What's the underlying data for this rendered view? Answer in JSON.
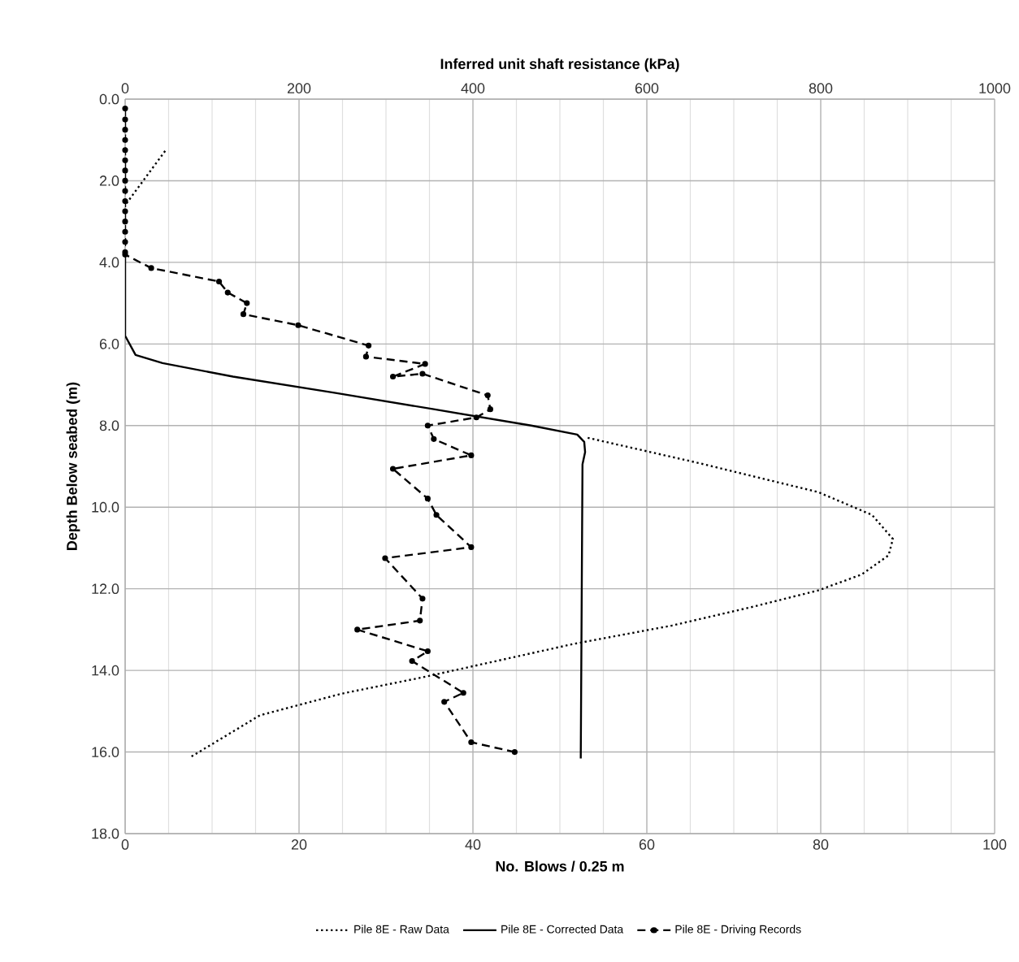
{
  "chart_data": {
    "type": "line",
    "xlabel": "No. Blows / 0.25 m",
    "x2label": "Inferred unit shaft resistance (kPa)",
    "ylabel": "Depth Below seabed (m)",
    "xlim": [
      0,
      100
    ],
    "xticks": [
      0,
      20,
      40,
      60,
      80,
      100
    ],
    "x2lim": [
      0,
      1000
    ],
    "x2ticks": [
      0,
      200,
      400,
      600,
      800,
      1000
    ],
    "ylim": [
      18,
      0
    ],
    "yticks": [
      {
        "value": 0,
        "label": "0.0"
      },
      {
        "value": 2,
        "label": "2.0"
      },
      {
        "value": 4,
        "label": "4.0"
      },
      {
        "value": 6,
        "label": "6.0"
      },
      {
        "value": 8,
        "label": "8.0"
      },
      {
        "value": 10,
        "label": "10.0"
      },
      {
        "value": 12,
        "label": "12.0"
      },
      {
        "value": 14,
        "label": "14.0"
      },
      {
        "value": 16,
        "label": "16.0"
      },
      {
        "value": 18,
        "label": "18.0"
      }
    ],
    "grid": true,
    "legend": "bottom",
    "series": [
      {
        "name": "Pile 8E - Raw Data",
        "color": "#000000",
        "axis": "x2",
        "line_style": "dotted",
        "marker": "none",
        "x": [
          46,
          0,
          null,
          532,
          660,
          797,
          859,
          883,
          878,
          847,
          797,
          722,
          629,
          516,
          342,
          249,
          155,
          74
        ],
        "values": [
          1.27,
          2.6,
          null,
          8.3,
          8.92,
          9.63,
          10.19,
          10.78,
          11.18,
          11.65,
          12.04,
          12.44,
          12.9,
          13.35,
          14.17,
          14.57,
          15.1,
          16.14
        ]
      },
      {
        "name": "Pile 8E - Corrected Data",
        "color": "#000000",
        "axis": "x2",
        "line_style": "solid",
        "marker": "none",
        "x": [
          0,
          0,
          12,
          43,
          124,
          242,
          355,
          467,
          520,
          528,
          529,
          526,
          524
        ],
        "values": [
          3.8,
          5.8,
          6.27,
          6.47,
          6.8,
          7.2,
          7.6,
          8.0,
          8.22,
          8.4,
          8.65,
          8.95,
          16.16
        ]
      },
      {
        "name": "Pile 8E - Driving Records",
        "color": "#000000",
        "line_style": "dashed",
        "marker": "circle",
        "x": [
          0,
          0,
          0,
          0,
          0,
          0,
          0,
          0,
          0,
          0,
          0,
          0,
          0,
          0,
          0,
          0,
          3.0,
          10.8,
          11.8,
          14.0,
          13.6,
          19.9,
          28.0,
          27.7,
          34.5,
          30.8,
          34.2,
          41.7,
          42.0,
          40.4,
          34.8,
          35.5,
          39.8,
          30.8,
          34.8,
          35.8,
          39.8,
          29.9,
          34.2,
          33.9,
          26.7,
          34.8,
          33.0,
          38.9,
          36.7,
          39.8,
          44.8
        ],
        "values": [
          0.23,
          0.5,
          0.75,
          1.0,
          1.25,
          1.5,
          1.75,
          2.0,
          2.25,
          2.5,
          2.75,
          3.0,
          3.25,
          3.5,
          3.75,
          3.81,
          4.14,
          4.47,
          4.74,
          5.0,
          5.27,
          5.54,
          6.04,
          6.31,
          6.49,
          6.8,
          6.73,
          7.26,
          7.6,
          7.8,
          8.0,
          8.33,
          8.73,
          9.06,
          9.79,
          10.19,
          10.98,
          11.25,
          12.24,
          12.78,
          13.0,
          13.53,
          13.77,
          14.55,
          14.77,
          15.76,
          16.0
        ]
      }
    ]
  }
}
